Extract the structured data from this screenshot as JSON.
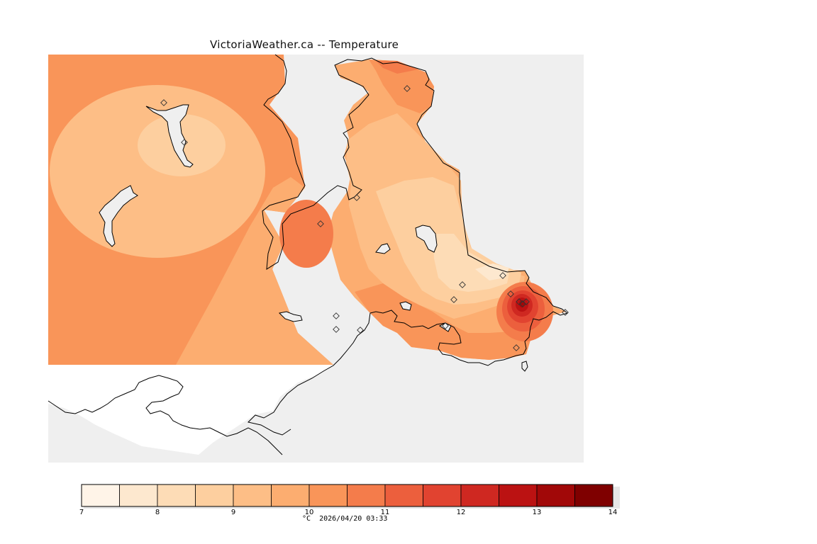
{
  "title": "VictoriaWeather.ca -- Temperature",
  "variable": "Temperature",
  "units": "°C",
  "timestamp": "2026/04/20 03:33",
  "colors": {
    "land_gray": "#efefef",
    "cleared_land": "#ffffff",
    "coastline": "#000000"
  },
  "colorbar": {
    "min": 7,
    "max": 14,
    "bins": [
      {
        "from": 7.0,
        "to": 7.5,
        "color": "#fff4e8"
      },
      {
        "from": 7.5,
        "to": 8.0,
        "color": "#fde8cf"
      },
      {
        "from": 8.0,
        "to": 8.5,
        "color": "#fddcb6"
      },
      {
        "from": 8.5,
        "to": 9.0,
        "color": "#fdcf9f"
      },
      {
        "from": 9.0,
        "to": 9.5,
        "color": "#fdbe86"
      },
      {
        "from": 9.5,
        "to": 10.0,
        "color": "#fcad70"
      },
      {
        "from": 10.0,
        "to": 10.5,
        "color": "#f99559"
      },
      {
        "from": 10.5,
        "to": 11.0,
        "color": "#f47c4b"
      },
      {
        "from": 11.0,
        "to": 11.5,
        "color": "#ec5f3d"
      },
      {
        "from": 11.5,
        "to": 12.0,
        "color": "#e14330"
      },
      {
        "from": 12.0,
        "to": 12.5,
        "color": "#cf2821"
      },
      {
        "from": 12.5,
        "to": 13.0,
        "color": "#bb1212"
      },
      {
        "from": 13.0,
        "to": 13.5,
        "color": "#a10808"
      },
      {
        "from": 13.5,
        "to": 14.0,
        "color": "#7f0000"
      }
    ],
    "tick_labels": [
      "7",
      "8",
      "9",
      "10",
      "11",
      "12",
      "13",
      "14"
    ]
  }
}
